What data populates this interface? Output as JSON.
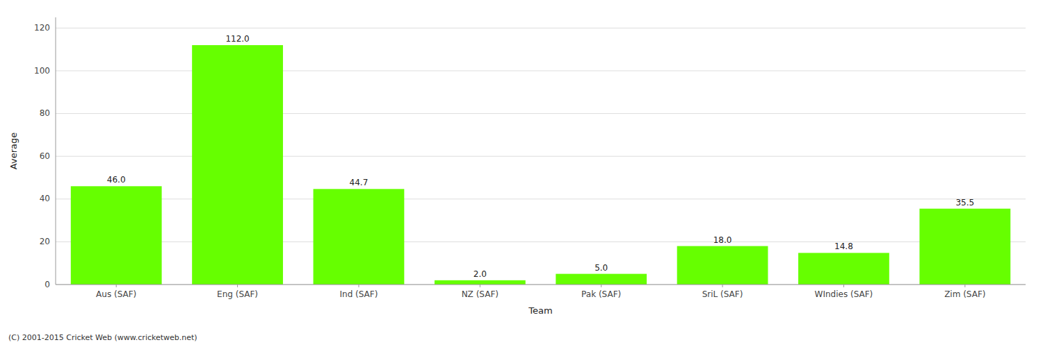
{
  "chart_data": {
    "type": "bar",
    "xlabel": "Team",
    "ylabel": "Average",
    "categories": [
      "Aus (SAF)",
      "Eng (SAF)",
      "Ind (SAF)",
      "NZ (SAF)",
      "Pak (SAF)",
      "SriL (SAF)",
      "WIndies (SAF)",
      "Zim (SAF)"
    ],
    "values": [
      46.0,
      112.0,
      44.7,
      2.0,
      5.0,
      18.0,
      14.8,
      35.5
    ],
    "value_labels": [
      "46.0",
      "112.0",
      "44.7",
      "2.0",
      "5.0",
      "18.0",
      "14.8",
      "35.5"
    ],
    "data_labels": true,
    "color": "#66ff00",
    "ylim": [
      0,
      125
    ],
    "yticks": [
      0,
      20,
      40,
      60,
      80,
      100,
      120
    ],
    "grid": true,
    "annotations": [
      "(C) 2001-2015 Cricket Web (www.cricketweb.net)"
    ]
  }
}
